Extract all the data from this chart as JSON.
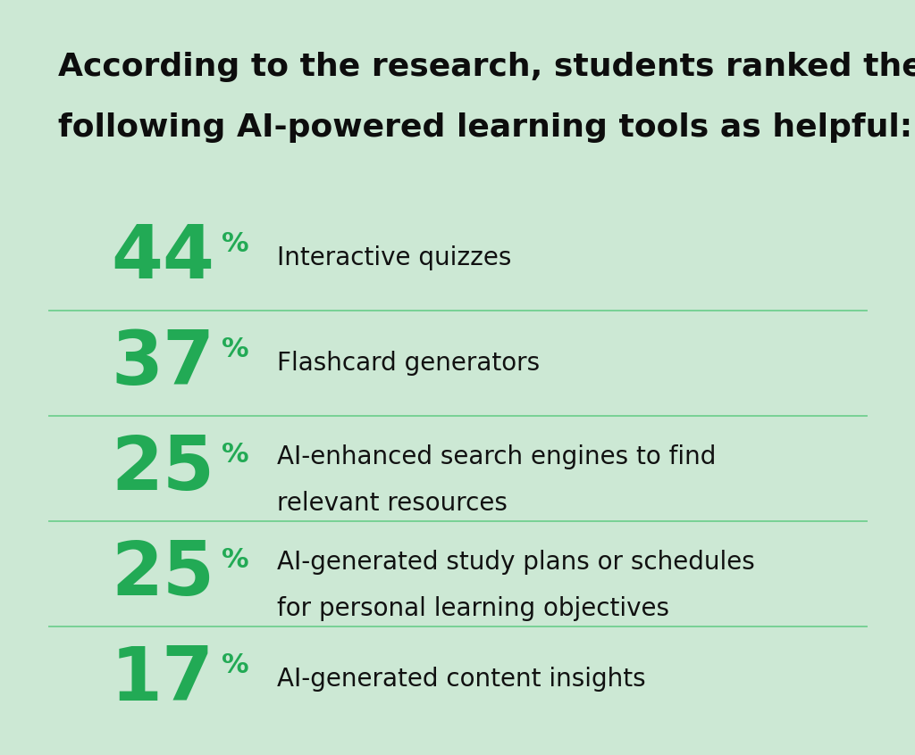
{
  "background_color": "#cce8d4",
  "title_line1": "According to the research, students ranked the",
  "title_line2": "following AI-powered learning tools as helpful:",
  "title_color": "#0d0d0d",
  "title_fontsize": 26,
  "title_fontweight": "bold",
  "items": [
    {
      "percent": "44",
      "label": "Interactive quizzes",
      "label2": ""
    },
    {
      "percent": "37",
      "label": "Flashcard generators",
      "label2": ""
    },
    {
      "percent": "25",
      "label": "AI-enhanced search engines to find",
      "label2": "relevant resources"
    },
    {
      "percent": "25",
      "label": "AI-generated study plans or schedules",
      "label2": "for personal learning objectives"
    },
    {
      "percent": "17",
      "label": "AI-generated content insights",
      "label2": ""
    }
  ],
  "number_color": "#22aa55",
  "percent_sign_color": "#22aa55",
  "label_color": "#111111",
  "divider_color": "#66cc88",
  "number_fontsize": 60,
  "percent_sign_fontsize": 22,
  "label_fontsize": 20,
  "label2_fontsize": 20
}
